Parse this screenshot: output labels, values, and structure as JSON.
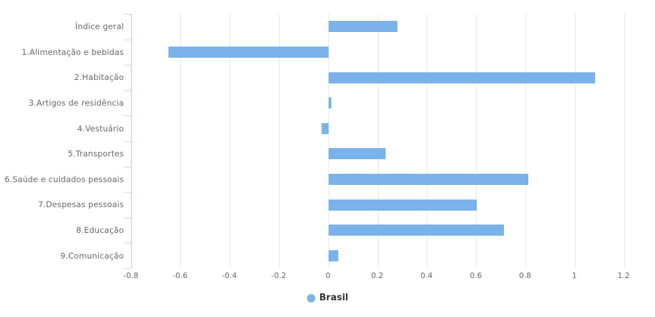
{
  "chart_data": {
    "type": "bar",
    "orientation": "horizontal",
    "title": "",
    "xlabel": "",
    "ylabel": "",
    "categories": [
      "Índice geral",
      "1.Alimentação e bebidas",
      "2.Habitação",
      "3.Artigos de residência",
      "4.Vestuário",
      "5.Transportes",
      "6.Saúde e cuidados pessoais",
      "7.Despesas pessoais",
      "8.Educação",
      "9.Comunicação"
    ],
    "series": [
      {
        "name": "Brasil",
        "values": [
          0.28,
          -0.65,
          1.08,
          0.01,
          -0.03,
          0.23,
          0.81,
          0.6,
          0.71,
          0.04
        ]
      }
    ],
    "xlim": [
      -0.8,
      1.2
    ],
    "x_tick_values": [
      -0.8,
      -0.6,
      -0.4,
      -0.2,
      0,
      0.2,
      0.4,
      0.6,
      0.8,
      1,
      1.2
    ],
    "x_tick_labels": [
      "-0.8",
      "-0.6",
      "-0.4",
      "-0.2",
      "0",
      "0.2",
      "0.4",
      "0.6",
      "0.8",
      "1",
      "1.2"
    ],
    "grid": true,
    "legend": {
      "position": "bottom-center",
      "entries": [
        "Brasil"
      ]
    },
    "colors": {
      "series": "#7ab2e9",
      "gridline": "#e6e6e6",
      "axis_line": "#ccd6eb",
      "category_label": "#666666",
      "tick_label": "#666666",
      "legend_text": "#333333"
    }
  }
}
